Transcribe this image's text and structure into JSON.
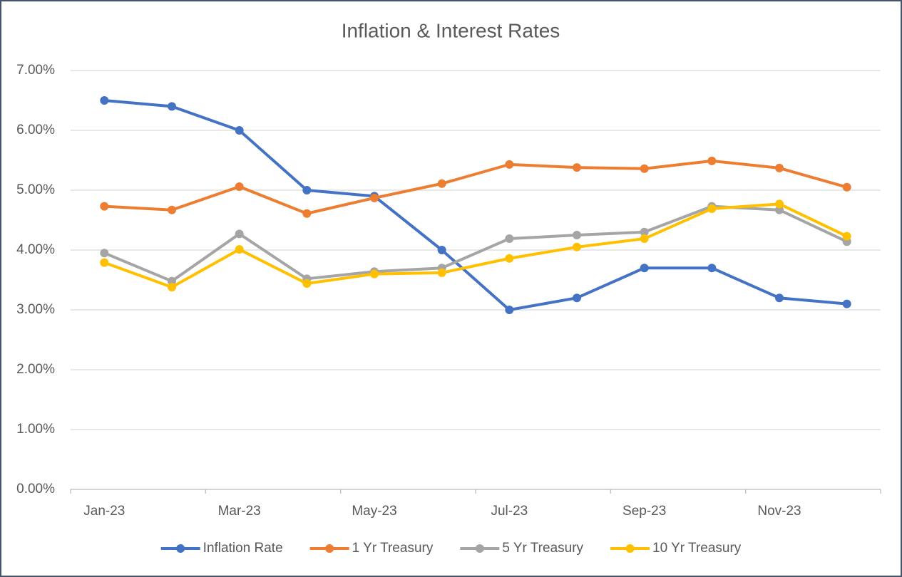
{
  "chart_data": {
    "type": "line",
    "title": "Inflation & Interest Rates",
    "categories": [
      "Jan-23",
      null,
      "Mar-23",
      null,
      "May-23",
      null,
      "Jul-23",
      null,
      "Sep-23",
      null,
      "Nov-23",
      null
    ],
    "series": [
      {
        "name": "Inflation Rate",
        "color": "#4472c4",
        "values": [
          6.5,
          6.4,
          6.0,
          5.0,
          4.9,
          4.0,
          3.0,
          3.2,
          3.7,
          3.7,
          3.2,
          3.1
        ]
      },
      {
        "name": "1 Yr Treasury",
        "color": "#ed7d31",
        "values": [
          4.73,
          4.67,
          5.06,
          4.61,
          4.87,
          5.11,
          5.43,
          5.38,
          5.36,
          5.49,
          5.37,
          5.05
        ]
      },
      {
        "name": "5 Yr Treasury",
        "color": "#a5a5a5",
        "values": [
          3.95,
          3.48,
          4.27,
          3.52,
          3.64,
          3.7,
          4.19,
          4.25,
          4.3,
          4.73,
          4.67,
          4.14
        ]
      },
      {
        "name": "10 Yr Treasury",
        "color": "#ffc000",
        "values": [
          3.79,
          3.38,
          4.01,
          3.44,
          3.6,
          3.62,
          3.86,
          4.05,
          4.19,
          4.69,
          4.77,
          4.23
        ]
      }
    ],
    "ylim": [
      0,
      7
    ],
    "yticks": [
      {
        "value": 0,
        "label": "0.00%"
      },
      {
        "value": 1,
        "label": "1.00%"
      },
      {
        "value": 2,
        "label": "2.00%"
      },
      {
        "value": 3,
        "label": "3.00%"
      },
      {
        "value": 4,
        "label": "4.00%"
      },
      {
        "value": 5,
        "label": "5.00%"
      },
      {
        "value": 6,
        "label": "6.00%"
      },
      {
        "value": 7,
        "label": "7.00%"
      }
    ],
    "grid": true,
    "legend": "bottom"
  }
}
